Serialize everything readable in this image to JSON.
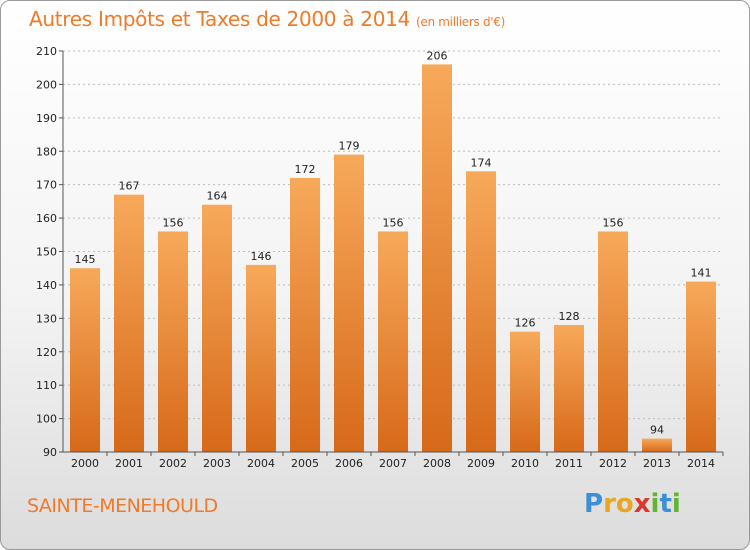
{
  "header": {
    "title": "Autres Impôts et Taxes de 2000 à 2014",
    "unit": "(en milliers d'€)"
  },
  "footer": {
    "place": "SAINTE-MENEHOULD",
    "logo": "Proxiti"
  },
  "colors": {
    "accent": "#f07a28",
    "bar_top": "#f6a552",
    "bar_bottom": "#d96a1a"
  },
  "chart_data": {
    "type": "bar",
    "title": "Autres Impôts et Taxes de 2000 à 2014",
    "subtitle": "(en milliers d'€)",
    "xlabel": "",
    "ylabel": "",
    "categories": [
      "2000",
      "2001",
      "2002",
      "2003",
      "2004",
      "2005",
      "2006",
      "2007",
      "2008",
      "2009",
      "2010",
      "2011",
      "2012",
      "2013",
      "2014"
    ],
    "values": [
      145,
      167,
      156,
      164,
      146,
      172,
      179,
      156,
      206,
      174,
      126,
      128,
      156,
      94,
      141
    ],
    "ylim": [
      90,
      210
    ],
    "yticks": [
      90,
      100,
      110,
      120,
      130,
      140,
      150,
      160,
      170,
      180,
      190,
      200,
      210
    ],
    "grid": "horizontal-dashed",
    "legend": "none"
  }
}
